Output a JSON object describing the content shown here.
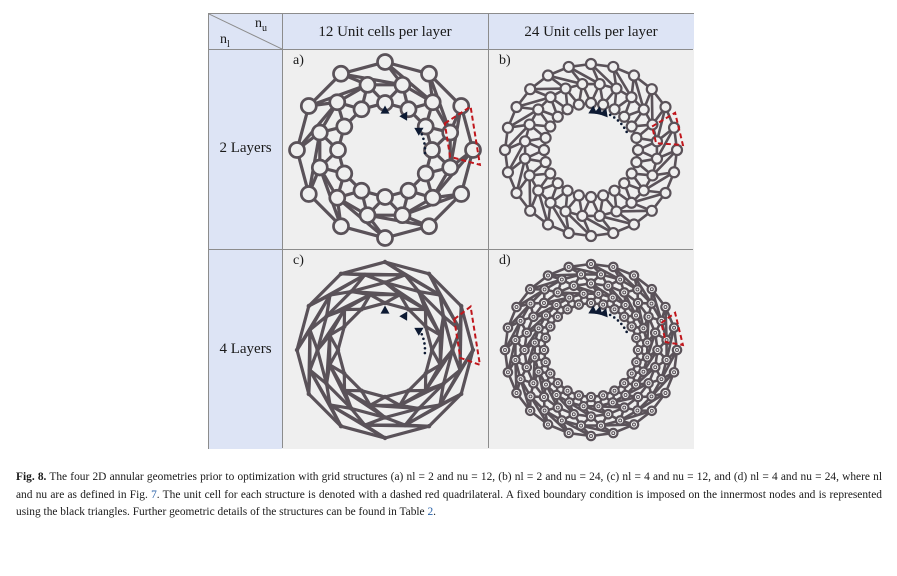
{
  "table": {
    "corner_col_symbol": "n",
    "corner_col_sub": "u",
    "corner_row_symbol": "n",
    "corner_row_sub": "l",
    "columns": [
      "12 Unit cells per layer",
      "24 Unit cells per layer"
    ],
    "rows": [
      "2 Layers",
      "4 Layers"
    ],
    "panels": [
      {
        "label": "a)",
        "layers": 2,
        "cells": 12
      },
      {
        "label": "b)",
        "layers": 2,
        "cells": 24
      },
      {
        "label": "c)",
        "layers": 4,
        "cells": 12
      },
      {
        "label": "d)",
        "layers": 4,
        "cells": 24
      }
    ]
  },
  "colors": {
    "header_bg": "#dde4f5",
    "panel_bg": "#efefef",
    "lattice": "#5a5259",
    "unit_cell_dash": "#c0161c",
    "support": "#0d1a33",
    "link": "#2a62a8"
  },
  "caption": {
    "fig_label": "Fig. 8.",
    "text_1": " The four 2D annular geometries prior to optimization with grid structures (a) n",
    "text_2": "l = 2 and nu = 12, (b) nl = 2 and nu = 24, (c) nl = 4 and nu = 12, and (d) nl = 4 and nu = 24, where nl and nu are as defined in Fig. ",
    "fig_ref": "7",
    "text_3": ". The unit cell for each structure is denoted with a dashed red quadrilateral. A fixed boundary condition is imposed on the innermost nodes and is represented using the black triangles. Further geometric details of the structures can be found in Table ",
    "table_ref": "2",
    "text_4": "."
  }
}
